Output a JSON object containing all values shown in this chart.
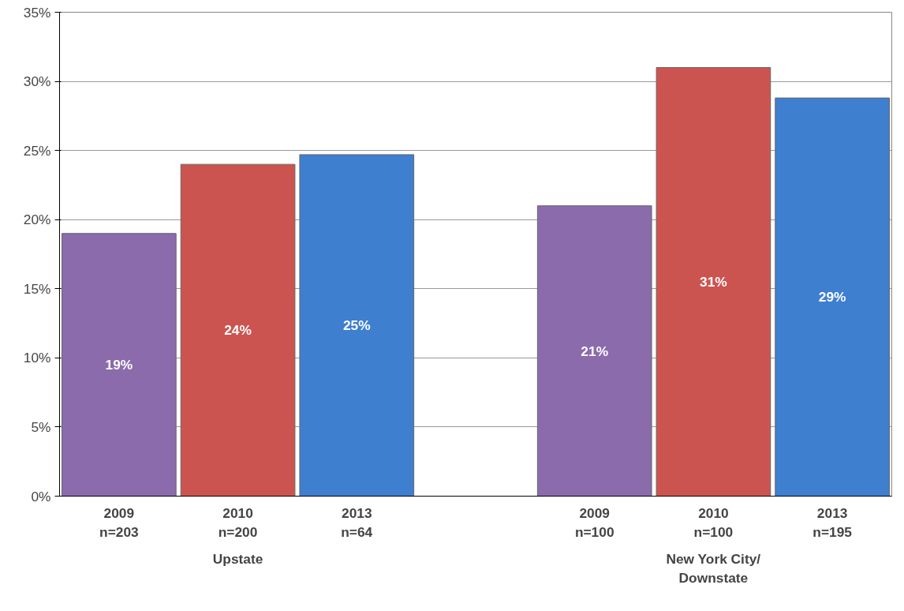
{
  "chart_data": {
    "type": "bar",
    "categories": [
      "2009\nn=203",
      "2010\nn=200",
      "2013\nn=64",
      null,
      "2009\nn=100",
      "2010\nn=100",
      "2013\nn=195"
    ],
    "series": [
      {
        "values": [
          19,
          24,
          24.7,
          null,
          21,
          31,
          28.8
        ],
        "colors": [
          "#8b6bac",
          "#cc5450",
          "#3e7fd0",
          null,
          "#8b6bac",
          "#cc5450",
          "#3e7fd0"
        ],
        "value_labels": [
          "19%",
          "24%",
          "25%",
          null,
          "21%",
          "31%",
          "29%"
        ]
      }
    ],
    "ylim": [
      0,
      35
    ],
    "yticks": [
      {
        "value": 0,
        "label": "0%"
      },
      {
        "value": 5,
        "label": "5%"
      },
      {
        "value": 10,
        "label": "10%"
      },
      {
        "value": 15,
        "label": "15%"
      },
      {
        "value": 20,
        "label": "20%"
      },
      {
        "value": 25,
        "label": "25%"
      },
      {
        "value": 30,
        "label": "30%"
      },
      {
        "value": 35,
        "label": "35%"
      }
    ],
    "annotations": [
      "Upstate",
      "New York City/\nDownstate"
    ],
    "grid": "y"
  }
}
